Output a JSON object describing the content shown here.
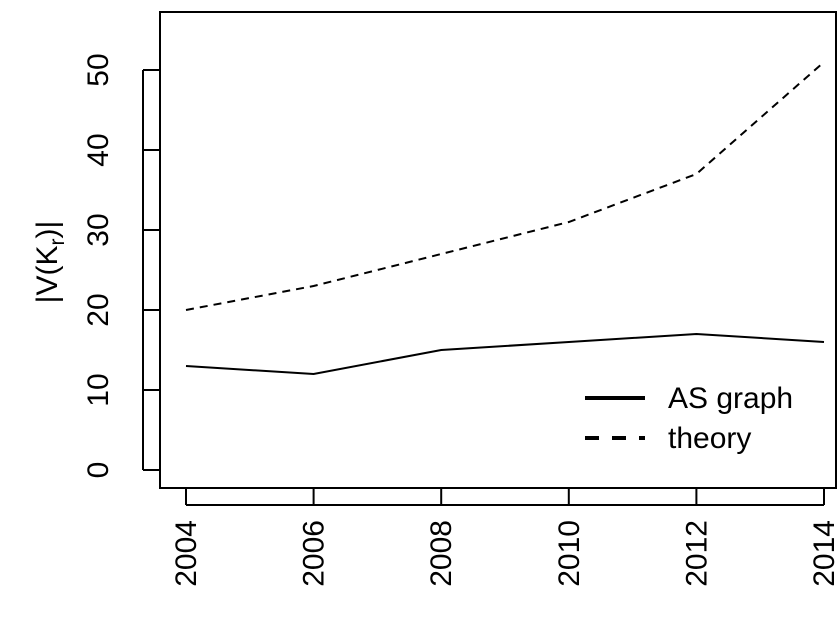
{
  "chart_data": {
    "type": "line",
    "x": [
      2004,
      2006,
      2008,
      2010,
      2012,
      2014
    ],
    "series": [
      {
        "name": "AS graph",
        "values": [
          13,
          12,
          15,
          16,
          17,
          16
        ],
        "style": "solid"
      },
      {
        "name": "theory",
        "values": [
          20,
          23,
          27,
          31,
          37,
          51
        ],
        "style": "dashed"
      }
    ],
    "xlabel": "",
    "ylabel": "|V(K_r)|",
    "x_ticks": [
      "2004",
      "2006",
      "2008",
      "2010",
      "2012",
      "2014"
    ],
    "y_ticks": [
      "0",
      "10",
      "20",
      "30",
      "40",
      "50"
    ],
    "xlim": [
      2004,
      2014
    ],
    "ylim": [
      0,
      50
    ],
    "grid": false,
    "legend_position": "bottom-right",
    "line_color": "#000000"
  }
}
